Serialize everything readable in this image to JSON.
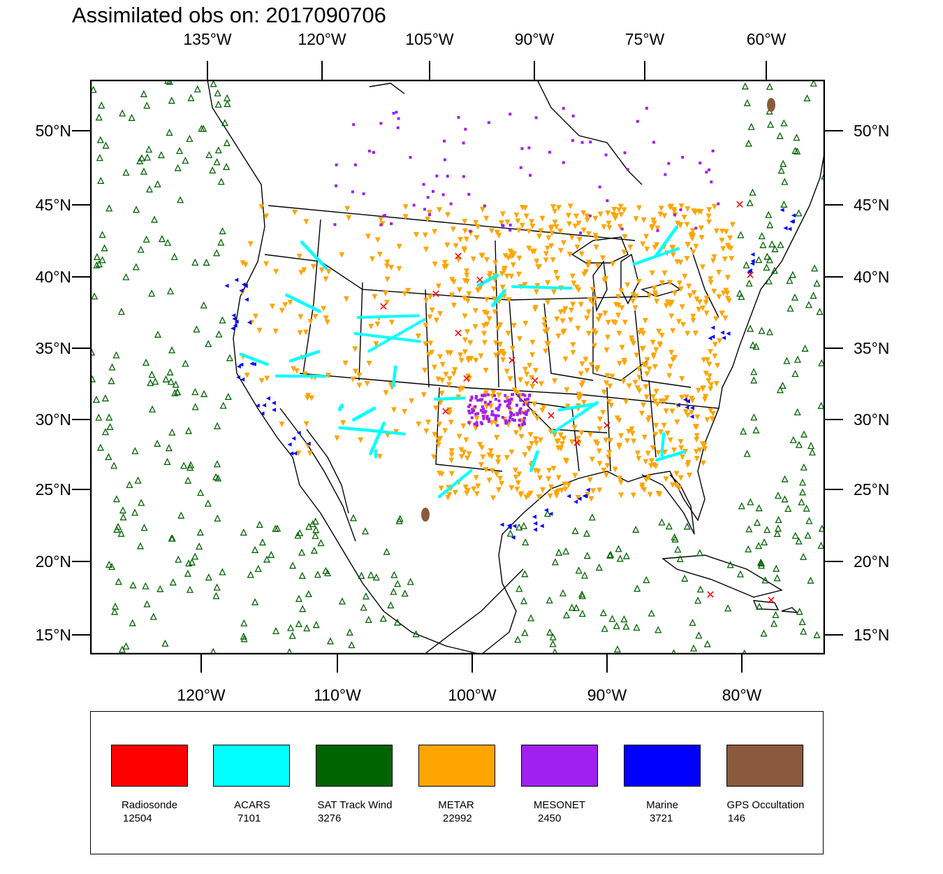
{
  "title": "Assimilated obs on: 2017090706",
  "top_axis_labels": [
    "135°W",
    "120°W",
    "105°W",
    "90°W",
    "75°W",
    "60°W"
  ],
  "bottom_axis_labels": [
    "120°W",
    "110°W",
    "100°W",
    "90°W",
    "80°W"
  ],
  "lat_labels": [
    "50°N",
    "45°N",
    "40°N",
    "35°N",
    "30°N",
    "25°N",
    "20°N",
    "15°N"
  ],
  "legend": [
    {
      "name": "Radiosonde",
      "count": "12504",
      "color": "#ff0000"
    },
    {
      "name": "ACARS",
      "count": "7101",
      "color": "#00ffff"
    },
    {
      "name": "SAT Track Wind",
      "count": "3276",
      "color": "#006400"
    },
    {
      "name": "METAR",
      "count": "22992",
      "color": "#ffa500"
    },
    {
      "name": "MESONET",
      "count": "2450",
      "color": "#a020f0"
    },
    {
      "name": "Marine",
      "count": "3721",
      "color": "#0000ff"
    },
    {
      "name": "GPS Occultation",
      "count": "146",
      "color": "#8b5a3c"
    }
  ],
  "marker_colors": {
    "radiosonde": "#ff0000",
    "acars": "#00ffff",
    "sat_track_wind": "#006400",
    "metar": "#ffa500",
    "mesonet": "#a020f0",
    "marine": "#0000ff",
    "gps": "#8b5a3c"
  }
}
